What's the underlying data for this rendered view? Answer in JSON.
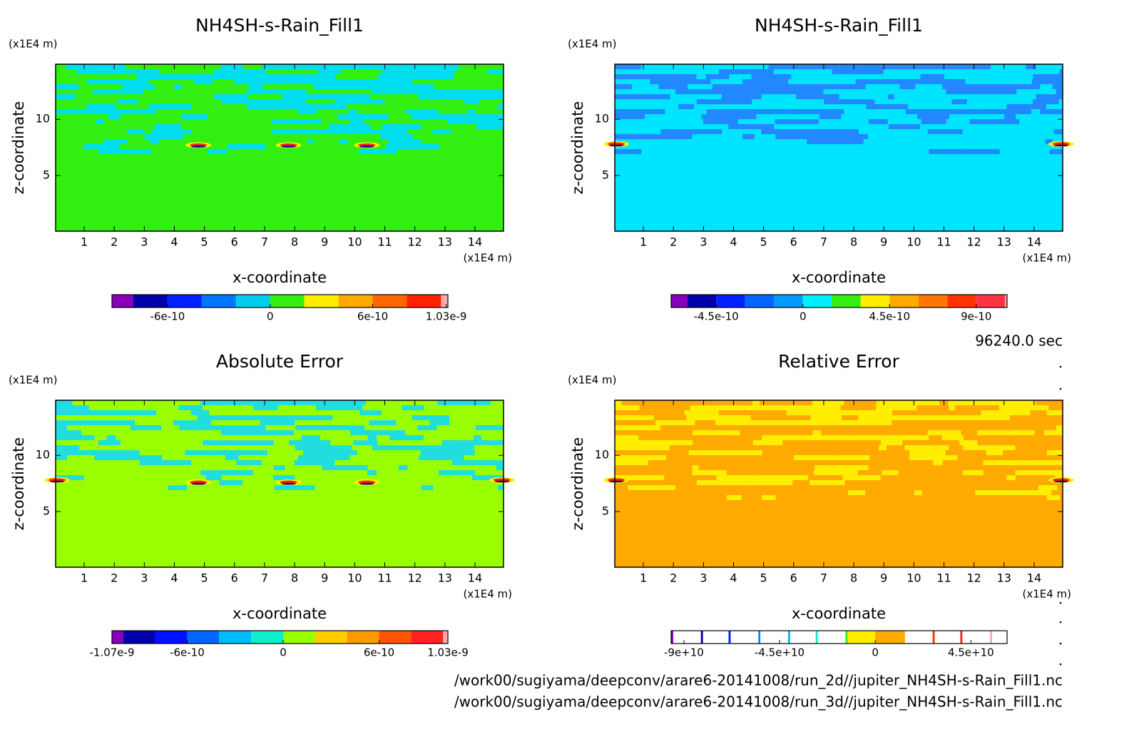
{
  "chart_data": [
    {
      "type": "contour",
      "title": "NH4SH-s-Rain_Fill1",
      "y_unit": "(x1E4 m)",
      "x_unit": "(x1E4 m)",
      "xlabel": "x-coordinate",
      "ylabel": "z-coordinate",
      "xlim": [
        0.05,
        14.95
      ],
      "ylim": [
        0.05,
        14.9
      ],
      "xticks": [
        1,
        2,
        3,
        4,
        5,
        6,
        7,
        8,
        9,
        10,
        11,
        12,
        13,
        14
      ],
      "yticks": [
        5,
        10
      ],
      "fill_color": "#33ee11",
      "band_color": "#00ddee",
      "colorbar": {
        "levels": [
          -9.25e-10,
          -8e-10,
          -6e-10,
          -4e-10,
          -2e-10,
          0,
          2e-10,
          4e-10,
          6e-10,
          8e-10,
          1e-09,
          1.04e-09
        ],
        "colors": [
          "#8800bb",
          "#0000aa",
          "#0022ff",
          "#0077ff",
          "#00ccee",
          "#33ee11",
          "#ffee00",
          "#ffaa00",
          "#ff6600",
          "#ff2200",
          "#ffaaaa"
        ],
        "ticks": [
          -6e-10,
          0,
          6e-10,
          1.03e-09
        ]
      }
    },
    {
      "type": "contour",
      "title": "NH4SH-s-Rain_Fill1",
      "y_unit": "(x1E4 m)",
      "x_unit": "(x1E4 m)",
      "xlabel": "x-coordinate",
      "ylabel": "z-coordinate",
      "xlim": [
        0.05,
        14.95
      ],
      "ylim": [
        0.05,
        14.9
      ],
      "xticks": [
        1,
        2,
        3,
        4,
        5,
        6,
        7,
        8,
        9,
        10,
        11,
        12,
        13,
        14
      ],
      "yticks": [
        5,
        10
      ],
      "fill_color": "#00e5ff",
      "band_color": "#2288ff",
      "colorbar": {
        "levels": [
          -6.84e-10,
          -6e-10,
          -4.5e-10,
          -3e-10,
          -1.5e-10,
          0,
          1.5e-10,
          3e-10,
          4.5e-10,
          6e-10,
          7.5e-10,
          9e-10,
          1.05e-09,
          1.06e-09
        ],
        "colors": [
          "#8800bb",
          "#0000aa",
          "#0022ff",
          "#0066ff",
          "#0099ff",
          "#00eeff",
          "#33ee11",
          "#ffee00",
          "#ffaa00",
          "#ff7700",
          "#ff3300",
          "#ff3344",
          "#ffaaaa"
        ],
        "ticks": [
          -4.5e-10,
          0,
          4.5e-10,
          9e-10
        ]
      }
    },
    {
      "type": "contour",
      "title": "Absolute Error",
      "y_unit": "(x1E4 m)",
      "x_unit": "(x1E4 m)",
      "xlabel": "x-coordinate",
      "ylabel": "z-coordinate",
      "xlim": [
        0.05,
        14.95
      ],
      "ylim": [
        0.05,
        14.9
      ],
      "xticks": [
        1,
        2,
        3,
        4,
        5,
        6,
        7,
        8,
        9,
        10,
        11,
        12,
        13,
        14
      ],
      "yticks": [
        5,
        10
      ],
      "fill_color": "#99ff00",
      "band_color": "#22dddd",
      "colorbar": {
        "levels": [
          -1.07e-09,
          -1e-09,
          -8e-10,
          -6e-10,
          -4e-10,
          -2e-10,
          0,
          2e-10,
          4e-10,
          6e-10,
          8e-10,
          1e-09,
          1.03e-09
        ],
        "colors": [
          "#8800bb",
          "#0000aa",
          "#0011ff",
          "#0066ff",
          "#00bbff",
          "#11eecc",
          "#99ff00",
          "#ffcc00",
          "#ff9900",
          "#ff5500",
          "#ff2222",
          "#ffaaaa"
        ],
        "ticks": [
          -1.07e-09,
          -6e-10,
          0,
          6e-10,
          1.03e-09
        ]
      }
    },
    {
      "type": "contour",
      "title": "Relative Error",
      "y_unit": "(x1E4 m)",
      "x_unit": "(x1E4 m)",
      "xlabel": "x-coordinate",
      "ylabel": "z-coordinate",
      "xlim": [
        0.05,
        14.95
      ],
      "ylim": [
        0.05,
        14.9
      ],
      "xticks": [
        1,
        2,
        3,
        4,
        5,
        6,
        7,
        8,
        9,
        10,
        11,
        12,
        13,
        14
      ],
      "yticks": [
        5,
        10
      ],
      "fill_color": "#ffaa00",
      "band_color": "#ffee00",
      "colorbar": {
        "levels": [
          -96000000000.0,
          -95000000000.0,
          -82000000000.0,
          -81000000000.0,
          -69000000000.0,
          -68000000000.0,
          -55000000000.0,
          -54000000000.0,
          -41000000000.0,
          -40000000000.0,
          -28000000000.0,
          -27000000000.0,
          -14000000000.0,
          -13000000000.0,
          0,
          14000000000.0,
          27000000000.0,
          28000000000.0,
          40000000000.0,
          41000000000.0,
          54000000000.0,
          55000000000.0,
          62000000000.0
        ],
        "colors": [
          "#8800bb",
          "#ffffff",
          "#0000aa",
          "#ffffff",
          "#0022ff",
          "#ffffff",
          "#0088ff",
          "#ffffff",
          "#00bbff",
          "#ffffff",
          "#11eecc",
          "#ffffff",
          "#33ee11",
          "#ffee00",
          "#ffaa00",
          "#ffffff",
          "#ff3300",
          "#ffffff",
          "#ff2222",
          "#ffffff",
          "#ffaaaa",
          "#ffffff"
        ],
        "ticks": [
          {
            "value": -90000000000,
            "label": "-9e+10"
          },
          {
            "value": -45000000000,
            "label": "-4.5e+10"
          },
          0,
          {
            "value": 45000000000,
            "label": "4.5e+10"
          }
        ]
      }
    }
  ],
  "footer": {
    "time": "96240.0 sec",
    "files": [
      "/work00/sugiyama/deepconv/arare6-20141008/run_2d//jupiter_NH4SH-s-Rain_Fill1.nc",
      "/work00/sugiyama/deepconv/arare6-20141008/run_3d//jupiter_NH4SH-s-Rain_Fill1.nc"
    ]
  }
}
